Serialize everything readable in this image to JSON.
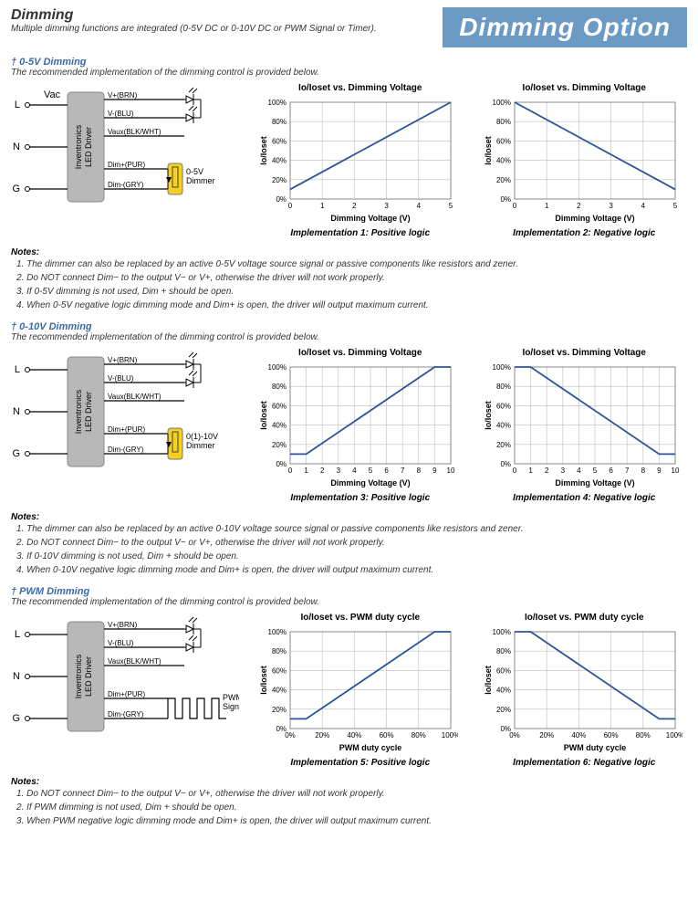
{
  "header": {
    "title": "Dimming",
    "subtitle": "Multiple dimming functions are integrated (0-5V DC or 0-10V DC or PWM Signal or Timer).",
    "banner": "Dimming Option"
  },
  "sections": [
    {
      "title": "† 0-5V Dimming",
      "intro": "The recommended implementation of the dimming control is provided below.",
      "diagram": {
        "driver_label": "Inventronics\nLED Driver",
        "left_labels": [
          "Vac",
          "",
          "",
          ""
        ],
        "terminals_left": [
          "L",
          "N",
          "G"
        ],
        "wires": [
          "V+(BRN)",
          "V-(BLU)",
          "Vaux(BLK/WHT)",
          "Dim+(PUR)",
          "Dim-(GRY)"
        ],
        "dimmer_label": "0-5V\nDimmer",
        "dimmer_type": "pot"
      },
      "charts": [
        {
          "title": "Io/Ioset vs. Dimming Voltage",
          "xlabel": "Dimming Voltage (V)",
          "ylabel": "Io/Ioset",
          "xlim": [
            0,
            5
          ],
          "xtick_step": 1,
          "ylim": [
            0,
            100
          ],
          "ytick_step": 20,
          "y_suffix": "%",
          "line": [
            [
              0,
              10
            ],
            [
              5,
              100
            ]
          ],
          "line_color": "#2a5599",
          "caption": "Implementation 1: Positive logic"
        },
        {
          "title": "Io/Ioset vs. Dimming Voltage",
          "xlabel": "Dimming Voltage (V)",
          "ylabel": "Io/Ioset",
          "xlim": [
            0,
            5
          ],
          "xtick_step": 1,
          "ylim": [
            0,
            100
          ],
          "ytick_step": 20,
          "y_suffix": "%",
          "line": [
            [
              0,
              100
            ],
            [
              5,
              10
            ]
          ],
          "line_color": "#2a5599",
          "caption": "Implementation 2: Negative logic"
        }
      ],
      "notes_head": "Notes:",
      "notes": [
        "1.  The dimmer can also be replaced by an active 0-5V voltage source signal or passive components like resistors and zener.",
        "2.  Do NOT connect Dim− to the output V− or V+, otherwise the driver will not work properly.",
        "3.  If 0-5V dimming is not used, Dim + should be open.",
        "4.  When 0-5V negative logic dimming mode and Dim+ is open, the driver will output maximum current."
      ]
    },
    {
      "title": "† 0-10V Dimming",
      "intro": "The recommended implementation of the dimming control is provided below.",
      "diagram": {
        "driver_label": "Inventronics\nLED Driver",
        "terminals_left": [
          "L",
          "N",
          "G"
        ],
        "wires": [
          "V+(BRN)",
          "V-(BLU)",
          "Vaux(BLK/WHT)",
          "Dim+(PUR)",
          "Dim-(GRY)"
        ],
        "dimmer_label": "0(1)-10V\nDimmer",
        "dimmer_type": "pot"
      },
      "charts": [
        {
          "title": "Io/Ioset vs. Dimming Voltage",
          "xlabel": "Dimming Voltage (V)",
          "ylabel": "Io/Ioset",
          "xlim": [
            0,
            10
          ],
          "xtick_step": 1,
          "ylim": [
            0,
            100
          ],
          "ytick_step": 20,
          "y_suffix": "%",
          "line": [
            [
              0,
              10
            ],
            [
              1,
              10
            ],
            [
              9,
              100
            ],
            [
              10,
              100
            ]
          ],
          "line_color": "#2a5599",
          "caption": "Implementation 3: Positive logic"
        },
        {
          "title": "Io/Ioset vs. Dimming Voltage",
          "xlabel": "Dimming Voltage (V)",
          "ylabel": "Io/Ioset",
          "xlim": [
            0,
            10
          ],
          "xtick_step": 1,
          "ylim": [
            0,
            100
          ],
          "ytick_step": 20,
          "y_suffix": "%",
          "line": [
            [
              0,
              100
            ],
            [
              1,
              100
            ],
            [
              9,
              10
            ],
            [
              10,
              10
            ]
          ],
          "line_color": "#2a5599",
          "caption": "Implementation 4: Negative logic"
        }
      ],
      "notes_head": "Notes:",
      "notes": [
        "1.  The dimmer can also be replaced by an active 0-10V voltage source signal or passive components like resistors and zener.",
        "2.  Do NOT connect Dim− to the output V− or V+, otherwise the driver will not work properly.",
        "3.  If 0-10V dimming is not used, Dim + should be open.",
        "4.  When 0-10V negative logic dimming mode and Dim+ is open, the driver will output maximum current."
      ]
    },
    {
      "title": "† PWM Dimming",
      "intro": "The recommended implementation of the dimming control is provided below.",
      "diagram": {
        "driver_label": "Inventronics\nLED Driver",
        "terminals_left": [
          "L",
          "N",
          "G"
        ],
        "wires": [
          "V+(BRN)",
          "V-(BLU)",
          "Vaux(BLK/WHT)",
          "Dim+(PUR)",
          "Dim-(GRY)"
        ],
        "dimmer_label": "PWM\nSignal",
        "dimmer_type": "pwm"
      },
      "charts": [
        {
          "title": "Io/Ioset vs. PWM duty cycle",
          "xlabel": "PWM duty cycle",
          "ylabel": "Io/Ioset",
          "xlim": [
            0,
            100
          ],
          "xtick_step": 20,
          "x_suffix": "%",
          "ylim": [
            0,
            100
          ],
          "ytick_step": 20,
          "y_suffix": "%",
          "line": [
            [
              0,
              10
            ],
            [
              10,
              10
            ],
            [
              90,
              100
            ],
            [
              100,
              100
            ]
          ],
          "line_color": "#2a5599",
          "caption": "Implementation 5: Positive logic"
        },
        {
          "title": "Io/Ioset vs. PWM duty cycle",
          "xlabel": "PWM duty cycle",
          "ylabel": "Io/Ioset",
          "xlim": [
            0,
            100
          ],
          "xtick_step": 20,
          "x_suffix": "%",
          "ylim": [
            0,
            100
          ],
          "ytick_step": 20,
          "y_suffix": "%",
          "line": [
            [
              0,
              100
            ],
            [
              10,
              100
            ],
            [
              90,
              10
            ],
            [
              100,
              10
            ]
          ],
          "line_color": "#2a5599",
          "caption": "Implementation 6: Negative logic"
        }
      ],
      "notes_head": "Notes:",
      "notes": [
        "1.  Do NOT connect Dim− to the output V− or V+, otherwise the driver will not work properly.",
        "2.  If PWM dimming is not used, Dim + should be open.",
        "3.  When PWM negative logic dimming mode and Dim+ is open, the driver will output maximum current."
      ]
    }
  ],
  "style": {
    "grid_color": "#bcbcbc",
    "axis_color": "#888",
    "bg": "#ffffff",
    "driver_fill": "#b8b8b8",
    "dimmer_fill": "#f5d020"
  }
}
